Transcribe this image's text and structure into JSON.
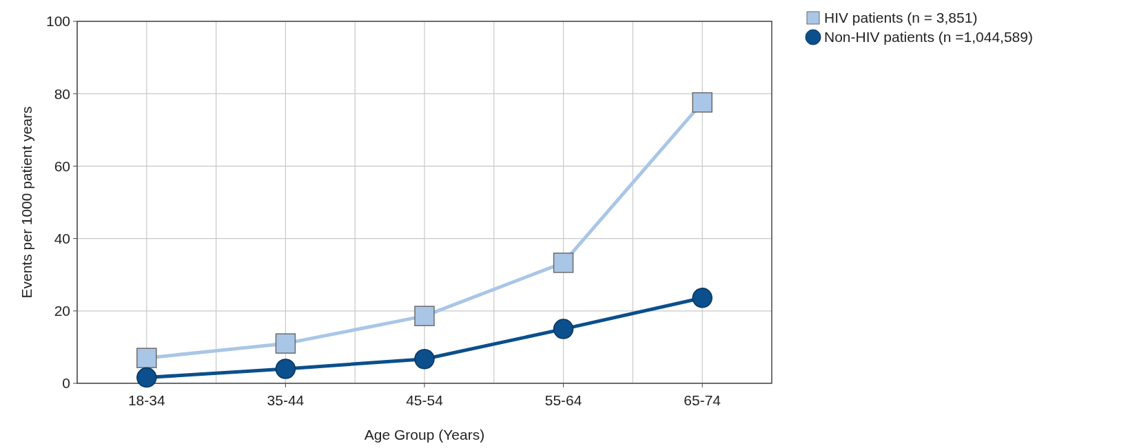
{
  "chart_data": {
    "type": "line",
    "xlabel": "Age Group (Years)",
    "ylabel": "Events per 1000 patient years",
    "categories": [
      "18-34",
      "35-44",
      "45-54",
      "55-64",
      "65-74"
    ],
    "series": [
      {
        "name": "HIV patients (n = 3,851)",
        "color": "#a9c6e6",
        "marker": "square",
        "values": [
          7,
          11,
          18.6,
          33.3,
          77.6
        ]
      },
      {
        "name": "Non-HIV patients (n =1,044,589)",
        "color": "#0b4f8c",
        "marker": "circle",
        "values": [
          1.6,
          4,
          6.7,
          15,
          23.6
        ]
      }
    ],
    "ylim": [
      0,
      100
    ],
    "yticks": [
      0,
      20,
      40,
      60,
      80,
      100
    ],
    "grid": true,
    "legend": "top right"
  }
}
